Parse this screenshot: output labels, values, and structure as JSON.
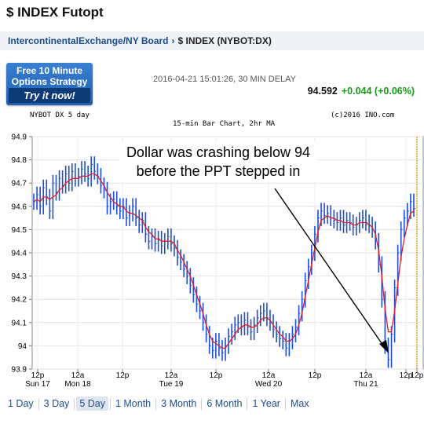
{
  "header": {
    "title": "$ INDEX Futopt"
  },
  "breadcrumb": {
    "link": "IntercontinentalExchange/NY Board",
    "separator": "›",
    "current": "$ INDEX (NYBOT:DX)"
  },
  "promo": {
    "line1": "Free 10 Minute",
    "line2": "Options Strategy",
    "cta": "Try it now!"
  },
  "quote": {
    "timestamp": "2016-04-21 15:01:26, 30 MIN DELAY",
    "price": "94.592",
    "change": "+0.044 (+0.06%)"
  },
  "chart_meta": {
    "symbol": "NYBOT DX 5 day",
    "copyright": "(c)2016 INO.com",
    "subtitle": "15-min Bar Chart, 2hr MA"
  },
  "annotation": {
    "line1": "Dollar was crashing below 94",
    "line2": "before the PPT stepped in"
  },
  "ranges": {
    "items": [
      "1 Day",
      "3 Day",
      "5 Day",
      "1 Month",
      "3 Month",
      "6 Month",
      "1 Year",
      "Max"
    ],
    "active": "5 Day"
  },
  "colors": {
    "bars": "#1f4fd6",
    "ma": "#e02020",
    "up": "#1a9a1a",
    "link": "#1a4c8f",
    "session_marker": "#f0a020"
  },
  "chart_data": {
    "type": "line",
    "ylim": [
      93.9,
      94.9
    ],
    "y_ticks": [
      "94.9",
      "94.8",
      "94.7",
      "94.6",
      "94.5",
      "94.4",
      "94.3",
      "94.2",
      "94.1",
      "94",
      "93.9"
    ],
    "x_ticks": [
      {
        "time": "12p",
        "day": "Sun 17"
      },
      {
        "time": "12a",
        "day": "Mon 18"
      },
      {
        "time": "12p",
        "day": ""
      },
      {
        "time": "12a",
        "day": "Tue 19"
      },
      {
        "time": "12p",
        "day": ""
      },
      {
        "time": "12a",
        "day": "Wed 20"
      },
      {
        "time": "12p",
        "day": ""
      },
      {
        "time": "12a",
        "day": "Thu 21"
      },
      {
        "time": "12p",
        "day": ""
      },
      {
        "time": "12p",
        "day": ""
      }
    ],
    "grid": true,
    "series": [
      {
        "kind": "bars",
        "values": [
          94.62,
          94.65,
          94.6,
          94.68,
          94.64,
          94.58,
          94.7,
          94.66,
          94.72,
          94.69,
          94.74,
          94.7,
          94.75,
          94.72,
          94.73,
          94.76,
          94.74,
          94.72,
          94.78,
          94.75,
          94.73,
          94.69,
          94.67,
          94.6,
          94.62,
          94.63,
          94.6,
          94.58,
          94.6,
          94.55,
          94.57,
          94.6,
          94.55,
          94.52,
          94.54,
          94.48,
          94.45,
          94.47,
          94.44,
          94.46,
          94.43,
          94.45,
          94.47,
          94.44,
          94.42,
          94.38,
          94.36,
          94.33,
          94.3,
          94.26,
          94.22,
          94.18,
          94.15,
          94.1,
          94.05,
          94.0,
          93.98,
          94.02,
          93.99,
          93.97,
          94.0,
          94.04,
          94.06,
          94.09,
          94.1,
          94.08,
          94.11,
          94.08,
          94.06,
          94.09,
          94.12,
          94.14,
          94.15,
          94.12,
          94.1,
          94.07,
          94.05,
          94.03,
          94.02,
          93.99,
          94.02,
          94.05,
          94.08,
          94.14,
          94.2,
          94.28,
          94.34,
          94.4,
          94.48,
          94.55,
          94.58,
          94.56,
          94.57,
          94.55,
          94.54,
          94.53,
          94.55,
          94.52,
          94.54,
          94.53,
          94.51,
          94.52,
          94.54,
          94.55,
          94.53,
          94.52,
          94.5,
          94.45,
          94.35,
          94.2,
          94.0,
          93.94,
          94.05,
          94.25,
          94.4,
          94.5,
          94.55,
          94.58,
          94.62,
          94.59
        ]
      },
      {
        "kind": "ma",
        "name": "2hr MA",
        "values": [
          94.62,
          94.63,
          94.62,
          94.64,
          94.64,
          94.63,
          94.64,
          94.65,
          94.67,
          94.68,
          94.7,
          94.71,
          94.72,
          94.72,
          94.72,
          94.73,
          94.73,
          94.73,
          94.74,
          94.74,
          94.73,
          94.71,
          94.69,
          94.66,
          94.64,
          94.62,
          94.61,
          94.6,
          94.6,
          94.58,
          94.57,
          94.57,
          94.56,
          94.55,
          94.54,
          94.51,
          94.49,
          94.48,
          94.46,
          94.46,
          94.45,
          94.45,
          94.45,
          94.45,
          94.44,
          94.41,
          94.39,
          94.36,
          94.33,
          94.3,
          94.26,
          94.22,
          94.18,
          94.14,
          94.09,
          94.05,
          94.02,
          94.01,
          94.0,
          93.99,
          93.99,
          94.01,
          94.03,
          94.05,
          94.07,
          94.08,
          94.09,
          94.09,
          94.08,
          94.08,
          94.09,
          94.11,
          94.12,
          94.12,
          94.11,
          94.09,
          94.07,
          94.05,
          94.04,
          94.02,
          94.02,
          94.03,
          94.05,
          94.09,
          94.14,
          94.21,
          94.28,
          94.35,
          94.42,
          94.49,
          94.54,
          94.55,
          94.56,
          94.55,
          94.55,
          94.54,
          94.54,
          94.53,
          94.53,
          94.53,
          94.52,
          94.52,
          94.53,
          94.53,
          94.53,
          94.52,
          94.51,
          94.48,
          94.41,
          94.3,
          94.16,
          94.06,
          94.06,
          94.15,
          94.27,
          94.38,
          94.46,
          94.52,
          94.57,
          94.58
        ]
      }
    ]
  }
}
